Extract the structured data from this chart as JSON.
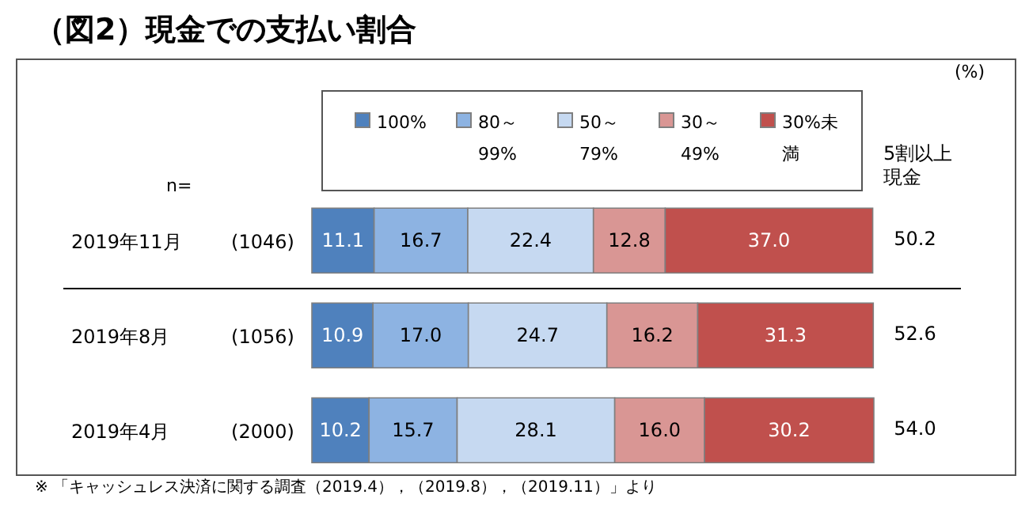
{
  "chart_data": {
    "type": "bar",
    "orientation": "horizontal",
    "stacked": true,
    "title": "（図2）現金での支払い割合",
    "categories": [
      "2019年11月",
      "2019年8月",
      "2019年4月"
    ],
    "series": [
      {
        "name": "100%",
        "color": "#4f81bd",
        "values": [
          11.1,
          10.9,
          10.2
        ],
        "value_labels": [
          "11.1",
          "10.9",
          "10.2"
        ]
      },
      {
        "name": "80～99%",
        "color": "#8db3e2",
        "values": [
          16.7,
          17.0,
          15.7
        ],
        "value_labels": [
          "16.7",
          "17.0",
          "15.7"
        ]
      },
      {
        "name": "50～79%",
        "color": "#c6d9f1",
        "values": [
          22.4,
          24.7,
          28.1
        ],
        "value_labels": [
          "22.4",
          "24.7",
          "28.1"
        ]
      },
      {
        "name": "30～49%",
        "color": "#d99694",
        "values": [
          12.8,
          16.2,
          16.0
        ],
        "value_labels": [
          "12.8",
          "16.2",
          "16.0"
        ]
      },
      {
        "name": "30%未満",
        "color": "#c0504d",
        "values": [
          37.0,
          31.3,
          30.2
        ],
        "value_labels": [
          "37.0",
          "31.3",
          "30.2"
        ]
      }
    ],
    "legend": "top",
    "grid": false,
    "tick_labels": false,
    "annotations": [
      "(%)",
      "n=",
      "(1046)",
      "(1056)",
      "(2000)",
      "5割以上現金",
      "50.2",
      "52.6",
      "54.0",
      "※ 「キャッシュレス決済に関する調査（2019.4），（2019.8），（2019.11）」より"
    ]
  }
}
